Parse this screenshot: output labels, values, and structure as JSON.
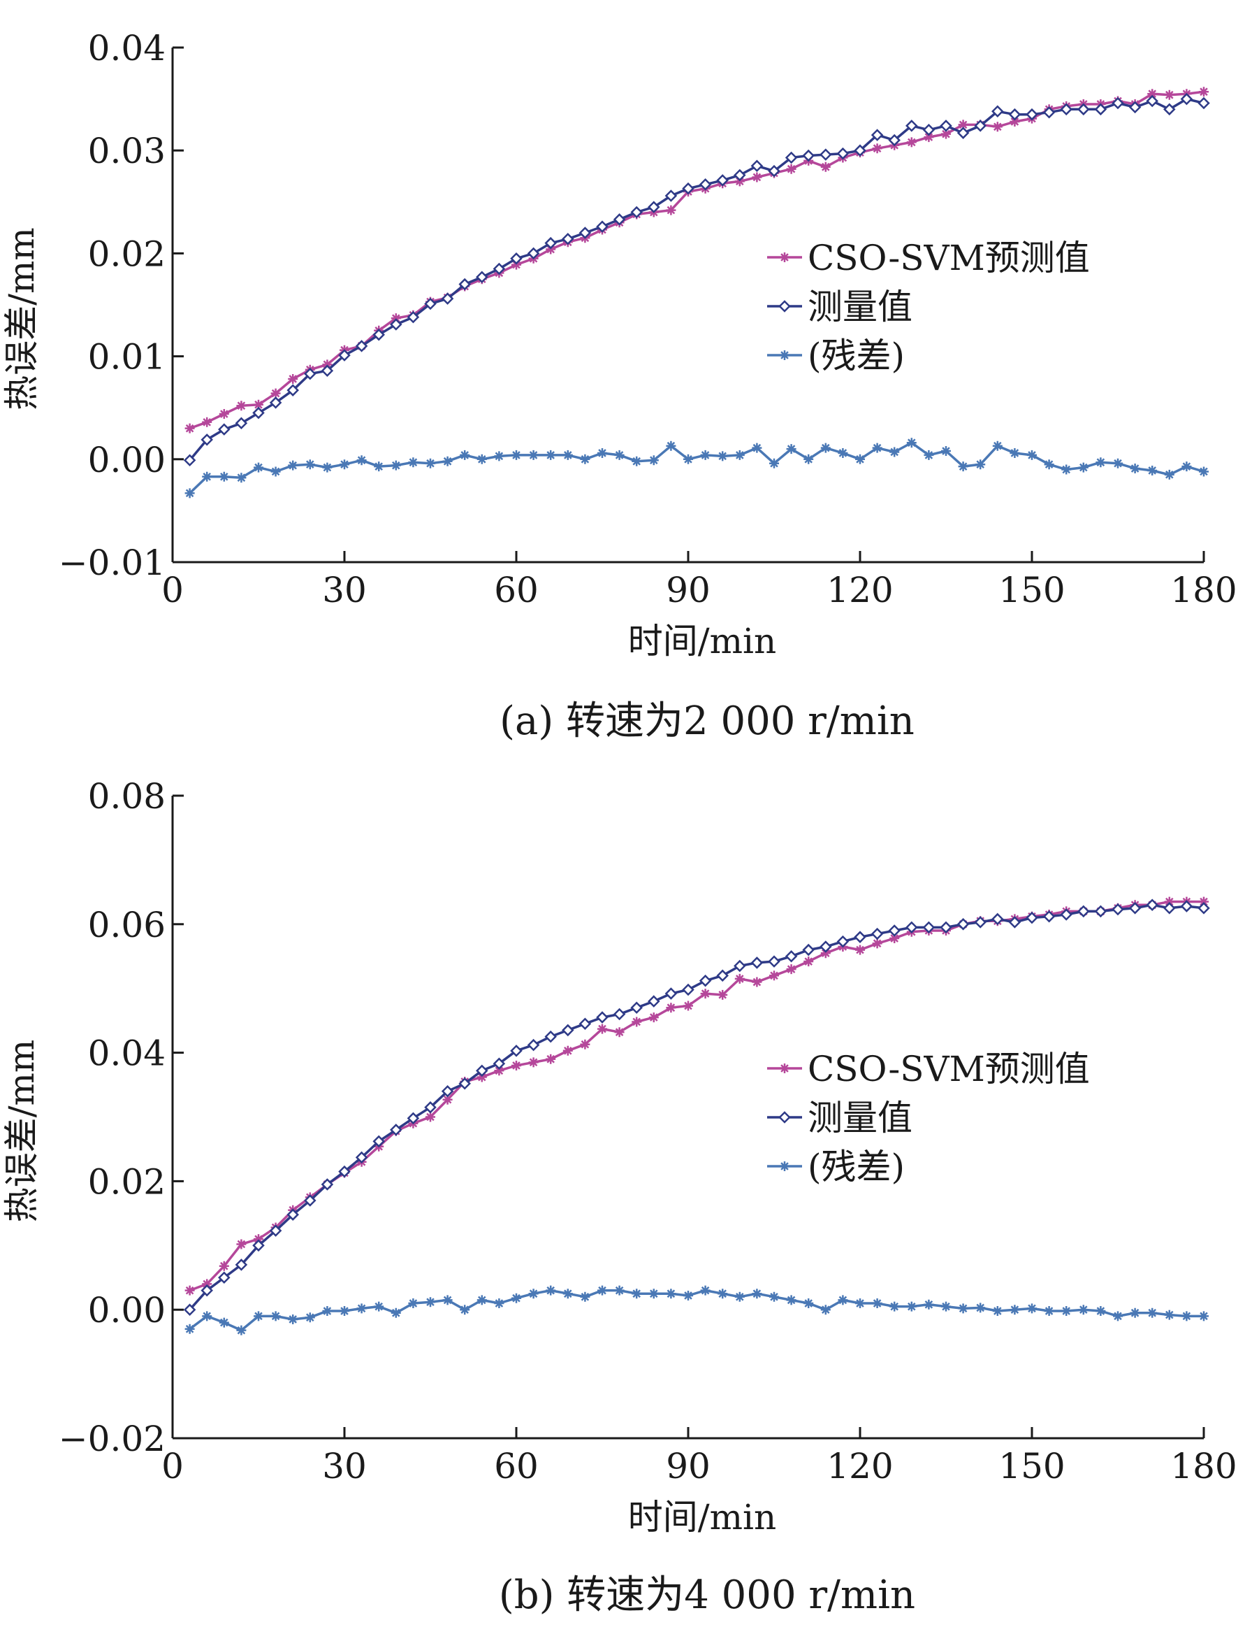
{
  "chart_data": [
    {
      "type": "line",
      "caption": "(a)  转速为2 000 r/min",
      "xlabel": "时间/min",
      "ylabel": "热误差/mm",
      "xlim": [
        0,
        180
      ],
      "ylim": [
        -0.01,
        0.04
      ],
      "xticks": [
        "0",
        "30",
        "60",
        "90",
        "120",
        "150",
        "180"
      ],
      "yticks": [
        "0.04",
        "0.03",
        "0.02",
        "0.01",
        "0.00",
        "−0.01"
      ],
      "legend_position": "right-middle",
      "x": [
        3,
        6,
        9,
        12,
        15,
        18,
        21,
        24,
        27,
        30,
        33,
        36,
        39,
        42,
        45,
        48,
        51,
        54,
        57,
        60,
        63,
        66,
        69,
        72,
        75,
        78,
        81,
        84,
        87,
        90,
        93,
        96,
        99,
        102,
        105,
        108,
        111,
        114,
        117,
        120,
        123,
        126,
        129,
        132,
        135,
        138,
        141,
        144,
        147,
        150,
        153,
        156,
        159,
        162,
        165,
        168,
        171,
        174,
        177,
        180
      ],
      "series": [
        {
          "name": "CSO-SVM预测值",
          "color": "#b5479a",
          "marker": "star",
          "values": [
            0.003,
            0.0036,
            0.0044,
            0.0052,
            0.0053,
            0.0064,
            0.0078,
            0.0087,
            0.0092,
            0.0106,
            0.011,
            0.0125,
            0.0137,
            0.014,
            0.0153,
            0.0157,
            0.0168,
            0.0175,
            0.0181,
            0.0189,
            0.0195,
            0.0204,
            0.0211,
            0.0215,
            0.0223,
            0.023,
            0.0238,
            0.024,
            0.0242,
            0.026,
            0.0263,
            0.0268,
            0.027,
            0.0274,
            0.0278,
            0.0282,
            0.029,
            0.0284,
            0.0293,
            0.0298,
            0.0302,
            0.0305,
            0.0308,
            0.0313,
            0.0316,
            0.0325,
            0.0325,
            0.0323,
            0.0328,
            0.0331,
            0.034,
            0.0343,
            0.0345,
            0.0345,
            0.0348,
            0.0345,
            0.0355,
            0.0354,
            0.0355,
            0.0357
          ]
        },
        {
          "name": "测量值",
          "color": "#2e3a87",
          "marker": "diamond",
          "values": [
            -0.0001,
            0.0019,
            0.0029,
            0.0035,
            0.0045,
            0.0055,
            0.0067,
            0.0083,
            0.0086,
            0.0101,
            0.011,
            0.0121,
            0.0131,
            0.0138,
            0.0151,
            0.0156,
            0.017,
            0.0177,
            0.0185,
            0.0195,
            0.02,
            0.021,
            0.0214,
            0.022,
            0.0226,
            0.0233,
            0.024,
            0.0245,
            0.0256,
            0.0263,
            0.0267,
            0.0271,
            0.0276,
            0.0285,
            0.028,
            0.0293,
            0.0295,
            0.0296,
            0.0297,
            0.03,
            0.0315,
            0.031,
            0.0324,
            0.032,
            0.0324,
            0.0317,
            0.0324,
            0.0338,
            0.0335,
            0.0335,
            0.0337,
            0.034,
            0.034,
            0.034,
            0.0346,
            0.0342,
            0.0348,
            0.034,
            0.035,
            0.0346
          ]
        },
        {
          "name": "(残差)",
          "color": "#4a78b5",
          "marker": "star",
          "values": [
            -0.0033,
            -0.0017,
            -0.0017,
            -0.0018,
            -0.0008,
            -0.0012,
            -0.0006,
            -0.0005,
            -0.0008,
            -0.0005,
            -0.0001,
            -0.0007,
            -0.0006,
            -0.0003,
            -0.0004,
            -0.0002,
            0.0004,
            0.0,
            0.0003,
            0.0004,
            0.0004,
            0.0004,
            0.0004,
            0.0,
            0.0006,
            0.0004,
            -0.0002,
            -0.0001,
            0.0013,
            0.0,
            0.0004,
            0.0003,
            0.0004,
            0.0011,
            -0.0004,
            0.001,
            0.0,
            0.0011,
            0.0006,
            0.0,
            0.0011,
            0.0007,
            0.0016,
            0.0004,
            0.0008,
            -0.0007,
            -0.0005,
            0.0013,
            0.0006,
            0.0004,
            -0.0005,
            -0.001,
            -0.0008,
            -0.0003,
            -0.0004,
            -0.0009,
            -0.0011,
            -0.0015,
            -0.0007,
            -0.0012
          ]
        }
      ]
    },
    {
      "type": "line",
      "caption": "(b)  转速为4 000 r/min",
      "xlabel": "时间/min",
      "ylabel": "热误差/mm",
      "xlim": [
        0,
        180
      ],
      "ylim": [
        -0.02,
        0.08
      ],
      "xticks": [
        "0",
        "30",
        "60",
        "90",
        "120",
        "150",
        "180"
      ],
      "yticks": [
        "0.08",
        "0.06",
        "0.04",
        "0.02",
        "0.00",
        "−0.02"
      ],
      "legend_position": "right-middle",
      "x": [
        3,
        6,
        9,
        12,
        15,
        18,
        21,
        24,
        27,
        30,
        33,
        36,
        39,
        42,
        45,
        48,
        51,
        54,
        57,
        60,
        63,
        66,
        69,
        72,
        75,
        78,
        81,
        84,
        87,
        90,
        93,
        96,
        99,
        102,
        105,
        108,
        111,
        114,
        117,
        120,
        123,
        126,
        129,
        132,
        135,
        138,
        141,
        144,
        147,
        150,
        153,
        156,
        159,
        162,
        165,
        168,
        171,
        174,
        177,
        180
      ],
      "series": [
        {
          "name": "CSO-SVM预测值",
          "color": "#b5479a",
          "marker": "star",
          "values": [
            0.003,
            0.004,
            0.0068,
            0.0102,
            0.011,
            0.0128,
            0.0155,
            0.0175,
            0.0195,
            0.0213,
            0.023,
            0.0254,
            0.0278,
            0.029,
            0.03,
            0.0327,
            0.0355,
            0.0362,
            0.0372,
            0.038,
            0.0385,
            0.039,
            0.0403,
            0.0413,
            0.0437,
            0.0432,
            0.0448,
            0.0455,
            0.047,
            0.0473,
            0.0492,
            0.049,
            0.0515,
            0.051,
            0.052,
            0.053,
            0.0542,
            0.0555,
            0.0565,
            0.056,
            0.057,
            0.0578,
            0.0588,
            0.059,
            0.059,
            0.06,
            0.0605,
            0.0605,
            0.0608,
            0.0612,
            0.0615,
            0.062,
            0.062,
            0.062,
            0.0625,
            0.063,
            0.063,
            0.0635,
            0.0635,
            0.0635
          ]
        },
        {
          "name": "测量值",
          "color": "#2e3a87",
          "marker": "diamond",
          "values": [
            0.0,
            0.003,
            0.005,
            0.007,
            0.01,
            0.0123,
            0.0148,
            0.017,
            0.0195,
            0.0215,
            0.0237,
            0.0262,
            0.028,
            0.0298,
            0.0315,
            0.034,
            0.0352,
            0.0372,
            0.0383,
            0.0403,
            0.0412,
            0.0425,
            0.0435,
            0.0445,
            0.0455,
            0.046,
            0.047,
            0.048,
            0.0492,
            0.0498,
            0.0512,
            0.052,
            0.0535,
            0.054,
            0.0542,
            0.055,
            0.056,
            0.0565,
            0.0573,
            0.058,
            0.0585,
            0.059,
            0.0595,
            0.0595,
            0.0595,
            0.06,
            0.0603,
            0.0608,
            0.0603,
            0.061,
            0.0612,
            0.0615,
            0.062,
            0.062,
            0.0623,
            0.0625,
            0.063,
            0.0625,
            0.0628,
            0.0625
          ]
        },
        {
          "name": "(残差)",
          "color": "#4a78b5",
          "marker": "star",
          "values": [
            -0.003,
            -0.001,
            -0.002,
            -0.0032,
            -0.001,
            -0.001,
            -0.0015,
            -0.0012,
            -0.0002,
            -0.0002,
            0.0002,
            0.0005,
            -0.0005,
            0.001,
            0.0012,
            0.0015,
            0.0,
            0.0015,
            0.001,
            0.0018,
            0.0025,
            0.003,
            0.0025,
            0.002,
            0.003,
            0.003,
            0.0025,
            0.0025,
            0.0025,
            0.0022,
            0.003,
            0.0025,
            0.002,
            0.0025,
            0.002,
            0.0015,
            0.001,
            0.0,
            0.0015,
            0.001,
            0.001,
            0.0005,
            0.0005,
            0.0008,
            0.0005,
            0.0002,
            0.0003,
            -0.0002,
            0.0,
            0.0002,
            -0.0002,
            -0.0002,
            0.0,
            -0.0002,
            -0.001,
            -0.0005,
            -0.0005,
            -0.0008,
            -0.001,
            -0.001
          ]
        }
      ]
    }
  ]
}
